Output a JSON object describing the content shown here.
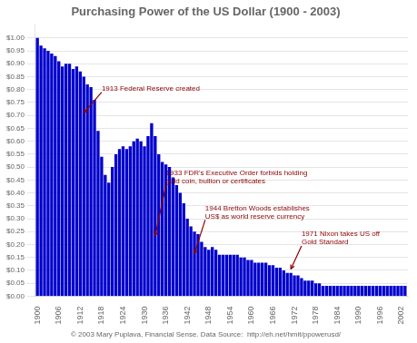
{
  "chart_data": {
    "type": "bar",
    "title": "Purchasing Power of the US Dollar (1900 - 2003)",
    "caption": "© 2003 Mary Puplava, Financial Sense. Data Source:  http://eh.net/hmit/ppowerusd/",
    "x": [
      1900,
      1901,
      1902,
      1903,
      1904,
      1905,
      1906,
      1907,
      1908,
      1909,
      1910,
      1911,
      1912,
      1913,
      1914,
      1915,
      1916,
      1917,
      1918,
      1919,
      1920,
      1921,
      1922,
      1923,
      1924,
      1925,
      1926,
      1927,
      1928,
      1929,
      1930,
      1931,
      1932,
      1933,
      1934,
      1935,
      1936,
      1937,
      1938,
      1939,
      1940,
      1941,
      1942,
      1943,
      1944,
      1945,
      1946,
      1947,
      1948,
      1949,
      1950,
      1951,
      1952,
      1953,
      1954,
      1955,
      1956,
      1957,
      1958,
      1959,
      1960,
      1961,
      1962,
      1963,
      1964,
      1965,
      1966,
      1967,
      1968,
      1969,
      1970,
      1971,
      1972,
      1973,
      1974,
      1975,
      1976,
      1977,
      1978,
      1979,
      1980,
      1981,
      1982,
      1983,
      1984,
      1985,
      1986,
      1987,
      1988,
      1989,
      1990,
      1991,
      1992,
      1993,
      1994,
      1995,
      1996,
      1997,
      1998,
      1999,
      2000,
      2001,
      2002,
      2003
    ],
    "values": [
      1.0,
      0.97,
      0.96,
      0.95,
      0.94,
      0.93,
      0.91,
      0.89,
      0.9,
      0.9,
      0.88,
      0.89,
      0.87,
      0.85,
      0.82,
      0.81,
      0.76,
      0.64,
      0.54,
      0.47,
      0.44,
      0.5,
      0.55,
      0.57,
      0.58,
      0.57,
      0.58,
      0.6,
      0.61,
      0.6,
      0.58,
      0.62,
      0.67,
      0.62,
      0.55,
      0.52,
      0.51,
      0.5,
      0.46,
      0.43,
      0.4,
      0.36,
      0.3,
      0.27,
      0.25,
      0.24,
      0.21,
      0.19,
      0.18,
      0.19,
      0.18,
      0.16,
      0.16,
      0.16,
      0.16,
      0.16,
      0.16,
      0.15,
      0.15,
      0.14,
      0.14,
      0.13,
      0.13,
      0.13,
      0.13,
      0.12,
      0.12,
      0.11,
      0.11,
      0.1,
      0.09,
      0.09,
      0.08,
      0.08,
      0.07,
      0.06,
      0.06,
      0.06,
      0.05,
      0.05,
      0.04,
      0.04,
      0.04,
      0.04,
      0.04,
      0.04,
      0.04,
      0.04,
      0.04,
      0.04,
      0.04,
      0.04,
      0.04,
      0.04,
      0.04,
      0.04,
      0.04,
      0.04,
      0.04,
      0.04,
      0.04,
      0.04,
      0.04,
      0.04
    ],
    "color": "#0000CC",
    "xlim": [
      1899.2,
      2003.8
    ],
    "xticks": [
      1900,
      1906,
      1912,
      1918,
      1924,
      1930,
      1936,
      1942,
      1948,
      1954,
      1960,
      1966,
      1972,
      1978,
      1984,
      1990,
      1996,
      2002
    ],
    "ylim": [
      0,
      1.05
    ],
    "yticks": [
      {
        "value": 0,
        "label": "$0.00"
      },
      {
        "value": 0.05,
        "label": "$0.05"
      },
      {
        "value": 0.1,
        "label": "$0.10"
      },
      {
        "value": 0.15,
        "label": "$0.15"
      },
      {
        "value": 0.2,
        "label": "$0.20"
      },
      {
        "value": 0.25,
        "label": "$0.25"
      },
      {
        "value": 0.3,
        "label": "$0.30"
      },
      {
        "value": 0.35,
        "label": "$0.35"
      },
      {
        "value": 0.4,
        "label": "$0.40"
      },
      {
        "value": 0.45,
        "label": "$0.45"
      },
      {
        "value": 0.5,
        "label": "$0.50"
      },
      {
        "value": 0.55,
        "label": "$0.55"
      },
      {
        "value": 0.6,
        "label": "$0.60"
      },
      {
        "value": 0.65,
        "label": "$0.65"
      },
      {
        "value": 0.7,
        "label": "$0.70"
      },
      {
        "value": 0.75,
        "label": "$0.75"
      },
      {
        "value": 0.8,
        "label": "$0.80"
      },
      {
        "value": 0.85,
        "label": "$0.85"
      },
      {
        "value": 0.9,
        "label": "$0.90"
      },
      {
        "value": 0.95,
        "label": "$0.95"
      },
      {
        "value": 1,
        "label": "$1.00"
      }
    ],
    "grid": true,
    "annotations": [
      {
        "text": "1913 Federal Reserve created",
        "x": 1913,
        "y": 0.71,
        "text_x": 1918,
        "text_y": 0.79
      },
      {
        "text": "1933 FDR's Executive Order forbids holding\ngold coin, bullion or certificates",
        "x": 1933,
        "y": 0.235,
        "text_x": 1936,
        "text_y": 0.43
      },
      {
        "text": "1944 Bretton Woods establishes\nUS$ as world reserve currency",
        "x": 1944,
        "y": 0.165,
        "text_x": 1947,
        "text_y": 0.295
      },
      {
        "text": "1971 Nixon takes US off\nGold Standard",
        "x": 1971,
        "y": 0.105,
        "text_x": 1974,
        "text_y": 0.195
      }
    ]
  }
}
